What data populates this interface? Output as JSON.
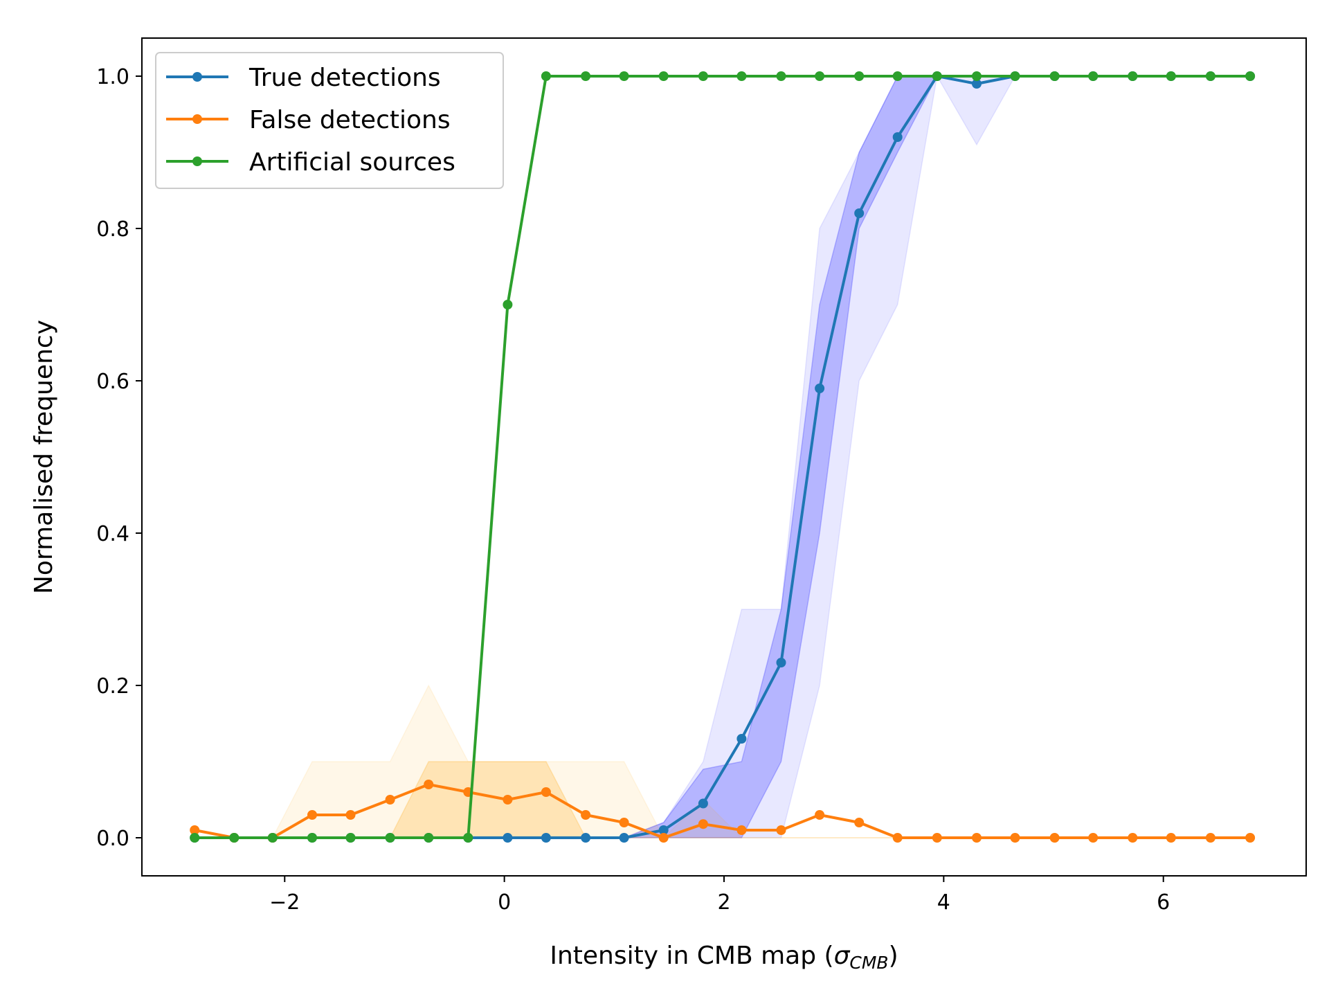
{
  "chart_data": {
    "type": "line",
    "xlabel": "Intensity in CMB map (",
    "xlabel_symbol": "σ",
    "xlabel_subscript": "CMB",
    "xlabel_close": ")",
    "ylabel": "Normalised frequency",
    "xlim": [
      -3.3,
      7.3
    ],
    "ylim": [
      -0.05,
      1.05
    ],
    "xticks": [
      -2,
      0,
      2,
      4,
      6
    ],
    "xtick_labels": [
      "−2",
      "0",
      "2",
      "4",
      "6"
    ],
    "yticks": [
      0.0,
      0.2,
      0.4,
      0.6,
      0.8,
      1.0
    ],
    "ytick_labels": [
      "0.0",
      "0.2",
      "0.4",
      "0.6",
      "0.8",
      "1.0"
    ],
    "legend_position": "top-left",
    "x": [
      -2.82,
      -2.46,
      -2.11,
      -1.75,
      -1.4,
      -1.04,
      -0.69,
      -0.33,
      0.03,
      0.38,
      0.74,
      1.09,
      1.45,
      1.81,
      2.16,
      2.52,
      2.87,
      3.23,
      3.58,
      3.94,
      4.3,
      4.65,
      5.01,
      5.36,
      5.72,
      6.07,
      6.43,
      6.79
    ],
    "series": [
      {
        "name": "True detections",
        "color": "#1f77b4",
        "values": [
          0,
          0,
          0,
          0,
          0,
          0,
          0,
          0,
          0,
          0,
          0,
          0,
          0.01,
          0.045,
          0.13,
          0.23,
          0.59,
          0.82,
          0.92,
          1.0,
          0.99,
          1.0,
          1.0,
          1.0,
          1.0,
          1.0,
          1.0,
          1.0
        ],
        "band_inner_lower": [
          0,
          0,
          0,
          0,
          0,
          0,
          0,
          0,
          0,
          0,
          0,
          0,
          0,
          0,
          0,
          0.1,
          0.4,
          0.8,
          0.9,
          1.0,
          1.0,
          1.0,
          1.0,
          1.0,
          1.0,
          1.0,
          1.0,
          1.0
        ],
        "band_inner_upper": [
          0,
          0,
          0,
          0,
          0,
          0,
          0,
          0,
          0,
          0,
          0,
          0,
          0.02,
          0.09,
          0.1,
          0.3,
          0.7,
          0.9,
          1.0,
          1.0,
          1.0,
          1.0,
          1.0,
          1.0,
          1.0,
          1.0,
          1.0,
          1.0
        ],
        "band_outer_lower": [
          0,
          0,
          0,
          0,
          0,
          0,
          0,
          0,
          0,
          0,
          0,
          0,
          0,
          0,
          0,
          0,
          0.2,
          0.6,
          0.7,
          1.0,
          0.91,
          1.0,
          1.0,
          1.0,
          1.0,
          1.0,
          1.0,
          1.0
        ],
        "band_outer_upper": [
          0,
          0,
          0,
          0,
          0,
          0,
          0,
          0,
          0,
          0,
          0,
          0,
          0.02,
          0.1,
          0.3,
          0.3,
          0.8,
          0.9,
          1.0,
          1.0,
          1.0,
          1.0,
          1.0,
          1.0,
          1.0,
          1.0,
          1.0,
          1.0
        ]
      },
      {
        "name": "False detections",
        "color": "#ff7f0e",
        "values": [
          0.01,
          0,
          0,
          0.03,
          0.03,
          0.05,
          0.07,
          0.06,
          0.05,
          0.06,
          0.03,
          0.02,
          0,
          0.018,
          0.01,
          0.01,
          0.03,
          0.02,
          0,
          0,
          0,
          0,
          0,
          0,
          0,
          0,
          0,
          0
        ],
        "band_inner_lower": [
          0,
          0,
          0,
          0,
          0,
          0,
          0,
          0,
          0,
          0,
          0,
          0,
          0,
          0,
          0,
          0,
          0,
          0,
          0,
          0,
          0,
          0,
          0,
          0,
          0,
          0,
          0,
          0
        ],
        "band_inner_upper": [
          0,
          0,
          0,
          0,
          0,
          0,
          0.1,
          0.1,
          0.1,
          0.1,
          0,
          0,
          0,
          0,
          0,
          0,
          0,
          0,
          0,
          0,
          0,
          0,
          0,
          0,
          0,
          0,
          0,
          0
        ],
        "band_outer_lower": [
          0,
          0,
          0,
          0,
          0,
          0,
          0,
          0,
          0,
          0,
          0,
          0,
          0,
          0,
          0,
          0,
          0,
          0,
          0,
          0,
          0,
          0,
          0,
          0,
          0,
          0,
          0,
          0
        ],
        "band_outer_upper": [
          0,
          0,
          0,
          0.1,
          0.1,
          0.1,
          0.2,
          0.1,
          0.1,
          0.1,
          0.1,
          0.1,
          0,
          0.05,
          0,
          0,
          0,
          0,
          0,
          0,
          0,
          0,
          0,
          0,
          0,
          0,
          0,
          0
        ]
      },
      {
        "name": "Artificial sources",
        "color": "#2ca02c",
        "values": [
          0,
          0,
          0,
          0,
          0,
          0,
          0,
          0,
          0.7,
          1.0,
          1.0,
          1.0,
          1.0,
          1.0,
          1.0,
          1.0,
          1.0,
          1.0,
          1.0,
          1.0,
          1.0,
          1.0,
          1.0,
          1.0,
          1.0,
          1.0,
          1.0,
          1.0
        ]
      }
    ]
  }
}
